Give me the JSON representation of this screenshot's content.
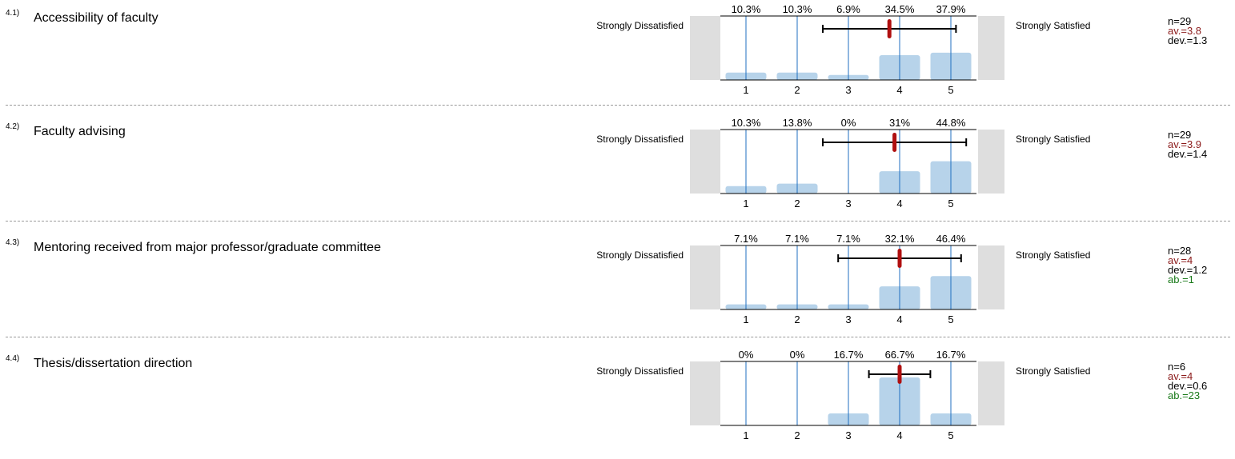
{
  "chart_data": [
    {
      "type": "bar",
      "id": "4.1)",
      "title": "Accessibility of faculty",
      "categories": [
        "1",
        "2",
        "3",
        "4",
        "5"
      ],
      "values": [
        10.3,
        10.3,
        6.9,
        34.5,
        37.9
      ],
      "value_labels": [
        "10.3%",
        "10.3%",
        "6.9%",
        "34.5%",
        "37.9%"
      ],
      "left_label": "Strongly Dissatisfied",
      "right_label": "Strongly Satisfied",
      "mean": 3.8,
      "std_dev": 1.3,
      "stats": {
        "n": "n=29",
        "av": "av.=3.8",
        "dev": "dev.=1.3",
        "ab": ""
      }
    },
    {
      "type": "bar",
      "id": "4.2)",
      "title": "Faculty advising",
      "categories": [
        "1",
        "2",
        "3",
        "4",
        "5"
      ],
      "values": [
        10.3,
        13.8,
        0,
        31,
        44.8
      ],
      "value_labels": [
        "10.3%",
        "13.8%",
        "0%",
        "31%",
        "44.8%"
      ],
      "left_label": "Strongly Dissatisfied",
      "right_label": "Strongly Satisfied",
      "mean": 3.9,
      "std_dev": 1.4,
      "stats": {
        "n": "n=29",
        "av": "av.=3.9",
        "dev": "dev.=1.4",
        "ab": ""
      }
    },
    {
      "type": "bar",
      "id": "4.3)",
      "title": "Mentoring received from major professor/graduate committee",
      "categories": [
        "1",
        "2",
        "3",
        "4",
        "5"
      ],
      "values": [
        7.1,
        7.1,
        7.1,
        32.1,
        46.4
      ],
      "value_labels": [
        "7.1%",
        "7.1%",
        "7.1%",
        "32.1%",
        "46.4%"
      ],
      "left_label": "Strongly Dissatisfied",
      "right_label": "Strongly Satisfied",
      "mean": 4,
      "std_dev": 1.2,
      "stats": {
        "n": "n=28",
        "av": "av.=4",
        "dev": "dev.=1.2",
        "ab": "ab.=1"
      }
    },
    {
      "type": "bar",
      "id": "4.4)",
      "title": "Thesis/dissertation direction",
      "categories": [
        "1",
        "2",
        "3",
        "4",
        "5"
      ],
      "values": [
        0,
        0,
        16.7,
        66.7,
        16.7
      ],
      "value_labels": [
        "0%",
        "0%",
        "16.7%",
        "66.7%",
        "16.7%"
      ],
      "left_label": "Strongly Dissatisfied",
      "right_label": "Strongly Satisfied",
      "mean": 4,
      "std_dev": 0.6,
      "stats": {
        "n": "n=6",
        "av": "av.=4",
        "dev": "dev.=0.6",
        "ab": "ab.=23"
      }
    }
  ],
  "colors": {
    "bar": "#b7d3ea",
    "gridline": "#1f6fc0",
    "side_box": "#dedede",
    "mean_marker": "#b01010",
    "error_bar": "#000000",
    "av_text": "#8b1a1a",
    "ab_text": "#1a7a1a"
  }
}
